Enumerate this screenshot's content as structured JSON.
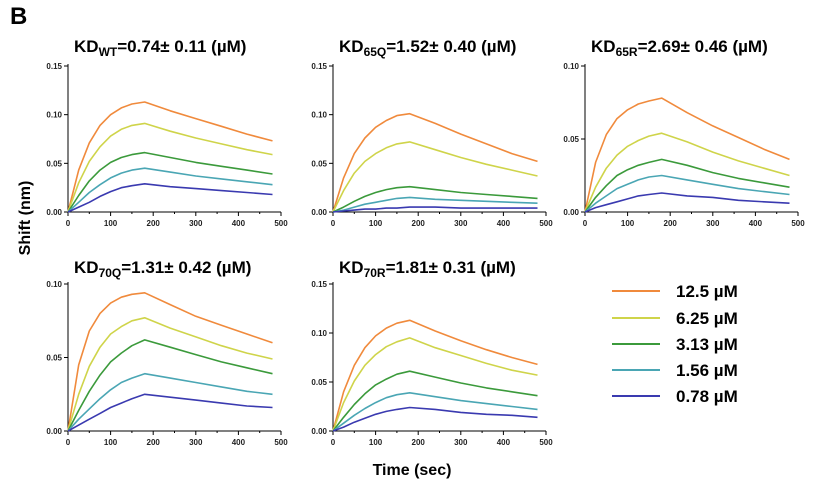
{
  "figure": {
    "panel_letter": "B",
    "ylabel": "Shift (nm)",
    "xlabel": "Time (sec)"
  },
  "legend": [
    {
      "label": "12.5 µM",
      "color": "#f08a3c"
    },
    {
      "label": "6.25 µM",
      "color": "#cfd44a"
    },
    {
      "label": "3.13 µM",
      "color": "#3b9a3b"
    },
    {
      "label": "1.56 µM",
      "color": "#4aa6b4"
    },
    {
      "label": "0.78 µM",
      "color": "#3a3ab0"
    }
  ],
  "chart_data": [
    {
      "type": "line",
      "title": {
        "prefix": "KD",
        "sub": "WT",
        "suffix": "=0.74± 0.11 (µM)"
      },
      "xlim": [
        0,
        500
      ],
      "ylim": [
        0,
        0.15
      ],
      "xticks": [
        "0",
        "100",
        "200",
        "300",
        "400",
        "500"
      ],
      "yticks": [
        "0.00",
        "0.05",
        "0.10",
        "0.15"
      ],
      "x": [
        0,
        25,
        50,
        75,
        100,
        125,
        150,
        180,
        240,
        300,
        360,
        420,
        480
      ],
      "series": [
        {
          "name": "12.5 µM",
          "values": [
            0,
            0.043,
            0.071,
            0.089,
            0.1,
            0.107,
            0.111,
            0.113,
            0.104,
            0.096,
            0.088,
            0.08,
            0.073
          ]
        },
        {
          "name": "6.25 µM",
          "values": [
            0,
            0.03,
            0.052,
            0.067,
            0.078,
            0.085,
            0.089,
            0.091,
            0.083,
            0.076,
            0.07,
            0.064,
            0.059
          ]
        },
        {
          "name": "3.13 µM",
          "values": [
            0,
            0.017,
            0.032,
            0.043,
            0.051,
            0.056,
            0.059,
            0.061,
            0.056,
            0.051,
            0.047,
            0.043,
            0.039
          ]
        },
        {
          "name": "1.56 µM",
          "values": [
            0,
            0.01,
            0.02,
            0.028,
            0.035,
            0.04,
            0.043,
            0.045,
            0.041,
            0.037,
            0.034,
            0.031,
            0.028
          ]
        },
        {
          "name": "0.78 µM",
          "values": [
            0,
            0.005,
            0.01,
            0.016,
            0.021,
            0.025,
            0.027,
            0.029,
            0.026,
            0.024,
            0.022,
            0.02,
            0.018
          ]
        }
      ]
    },
    {
      "type": "line",
      "title": {
        "prefix": "KD",
        "sub": "65Q",
        "suffix": "=1.52± 0.40 (µM)"
      },
      "xlim": [
        0,
        500
      ],
      "ylim": [
        0,
        0.15
      ],
      "xticks": [
        "0",
        "100",
        "200",
        "300",
        "400",
        "500"
      ],
      "yticks": [
        "0.00",
        "0.05",
        "0.10",
        "0.15"
      ],
      "x": [
        0,
        25,
        50,
        75,
        100,
        125,
        150,
        180,
        240,
        300,
        360,
        420,
        480
      ],
      "series": [
        {
          "name": "12.5 µM",
          "values": [
            0,
            0.035,
            0.06,
            0.076,
            0.087,
            0.094,
            0.099,
            0.101,
            0.091,
            0.08,
            0.07,
            0.06,
            0.052
          ]
        },
        {
          "name": "6.25 µM",
          "values": [
            0,
            0.022,
            0.04,
            0.052,
            0.06,
            0.066,
            0.07,
            0.072,
            0.064,
            0.056,
            0.049,
            0.043,
            0.037
          ]
        },
        {
          "name": "3.13 µM",
          "values": [
            0,
            0.005,
            0.011,
            0.016,
            0.02,
            0.023,
            0.025,
            0.026,
            0.023,
            0.02,
            0.018,
            0.016,
            0.014
          ]
        },
        {
          "name": "1.56 µM",
          "values": [
            0,
            0.002,
            0.005,
            0.008,
            0.01,
            0.012,
            0.014,
            0.015,
            0.013,
            0.012,
            0.011,
            0.01,
            0.009
          ]
        },
        {
          "name": "0.78 µM",
          "values": [
            0,
            0.001,
            0.002,
            0.003,
            0.003,
            0.004,
            0.004,
            0.005,
            0.005,
            0.004,
            0.004,
            0.004,
            0.004
          ]
        }
      ]
    },
    {
      "type": "line",
      "title": {
        "prefix": "KD",
        "sub": "65R",
        "suffix": "=2.69± 0.46 (µM)"
      },
      "xlim": [
        0,
        500
      ],
      "ylim": [
        0,
        0.1
      ],
      "xticks": [
        "0",
        "100",
        "200",
        "300",
        "400",
        "500"
      ],
      "yticks": [
        "0.00",
        "0.05",
        "0.10"
      ],
      "x": [
        0,
        25,
        50,
        75,
        100,
        125,
        150,
        180,
        240,
        300,
        360,
        420,
        480
      ],
      "series": [
        {
          "name": "12.5 µM",
          "values": [
            0,
            0.034,
            0.053,
            0.064,
            0.07,
            0.074,
            0.076,
            0.078,
            0.068,
            0.059,
            0.051,
            0.043,
            0.036
          ]
        },
        {
          "name": "6.25 µM",
          "values": [
            0,
            0.017,
            0.03,
            0.039,
            0.045,
            0.049,
            0.052,
            0.054,
            0.048,
            0.041,
            0.035,
            0.03,
            0.025
          ]
        },
        {
          "name": "3.13 µM",
          "values": [
            0,
            0.01,
            0.018,
            0.025,
            0.029,
            0.032,
            0.034,
            0.036,
            0.032,
            0.027,
            0.023,
            0.02,
            0.017
          ]
        },
        {
          "name": "1.56 µM",
          "values": [
            0,
            0.006,
            0.011,
            0.016,
            0.019,
            0.022,
            0.024,
            0.025,
            0.022,
            0.019,
            0.016,
            0.014,
            0.012
          ]
        },
        {
          "name": "0.78 µM",
          "values": [
            0,
            0.003,
            0.005,
            0.007,
            0.009,
            0.011,
            0.012,
            0.013,
            0.011,
            0.01,
            0.008,
            0.007,
            0.006
          ]
        }
      ]
    },
    {
      "type": "line",
      "title": {
        "prefix": "KD",
        "sub": "70Q",
        "suffix": "=1.31± 0.42 (µM)"
      },
      "xlim": [
        0,
        500
      ],
      "ylim": [
        0,
        0.1
      ],
      "xticks": [
        "0",
        "100",
        "200",
        "300",
        "400",
        "500"
      ],
      "yticks": [
        "0.00",
        "0.05",
        "0.10"
      ],
      "x": [
        0,
        25,
        50,
        75,
        100,
        125,
        150,
        180,
        240,
        300,
        360,
        420,
        480
      ],
      "series": [
        {
          "name": "12.5 µM",
          "values": [
            0,
            0.045,
            0.068,
            0.08,
            0.087,
            0.091,
            0.093,
            0.094,
            0.086,
            0.078,
            0.072,
            0.066,
            0.06
          ]
        },
        {
          "name": "6.25 µM",
          "values": [
            0,
            0.025,
            0.044,
            0.057,
            0.066,
            0.071,
            0.075,
            0.077,
            0.07,
            0.064,
            0.058,
            0.053,
            0.049
          ]
        },
        {
          "name": "3.13 µM",
          "values": [
            0,
            0.014,
            0.027,
            0.038,
            0.047,
            0.053,
            0.058,
            0.062,
            0.057,
            0.052,
            0.047,
            0.043,
            0.039
          ]
        },
        {
          "name": "1.56 µM",
          "values": [
            0,
            0.008,
            0.015,
            0.022,
            0.028,
            0.033,
            0.036,
            0.039,
            0.036,
            0.033,
            0.03,
            0.027,
            0.025
          ]
        },
        {
          "name": "0.78 µM",
          "values": [
            0,
            0.004,
            0.008,
            0.012,
            0.016,
            0.019,
            0.022,
            0.025,
            0.023,
            0.021,
            0.019,
            0.017,
            0.016
          ]
        }
      ]
    },
    {
      "type": "line",
      "title": {
        "prefix": "KD",
        "sub": "70R",
        "suffix": "=1.81± 0.31 (µM)"
      },
      "xlim": [
        0,
        500
      ],
      "ylim": [
        0,
        0.15
      ],
      "xticks": [
        "0",
        "100",
        "200",
        "300",
        "400",
        "500"
      ],
      "yticks": [
        "0.00",
        "0.05",
        "0.10",
        "0.15"
      ],
      "x": [
        0,
        25,
        50,
        75,
        100,
        125,
        150,
        180,
        240,
        300,
        360,
        420,
        480
      ],
      "series": [
        {
          "name": "12.5 µM",
          "values": [
            0,
            0.04,
            0.067,
            0.085,
            0.097,
            0.105,
            0.11,
            0.113,
            0.102,
            0.092,
            0.083,
            0.075,
            0.068
          ]
        },
        {
          "name": "6.25 µM",
          "values": [
            0,
            0.029,
            0.051,
            0.067,
            0.078,
            0.086,
            0.091,
            0.095,
            0.085,
            0.077,
            0.069,
            0.062,
            0.057
          ]
        },
        {
          "name": "3.13 µM",
          "values": [
            0,
            0.014,
            0.027,
            0.038,
            0.047,
            0.053,
            0.058,
            0.061,
            0.055,
            0.049,
            0.044,
            0.04,
            0.036
          ]
        },
        {
          "name": "1.56 µM",
          "values": [
            0,
            0.008,
            0.016,
            0.023,
            0.029,
            0.034,
            0.037,
            0.039,
            0.035,
            0.031,
            0.028,
            0.025,
            0.022
          ]
        },
        {
          "name": "0.78 µM",
          "values": [
            0,
            0.004,
            0.009,
            0.013,
            0.017,
            0.02,
            0.022,
            0.024,
            0.022,
            0.019,
            0.017,
            0.016,
            0.014
          ]
        }
      ]
    }
  ]
}
